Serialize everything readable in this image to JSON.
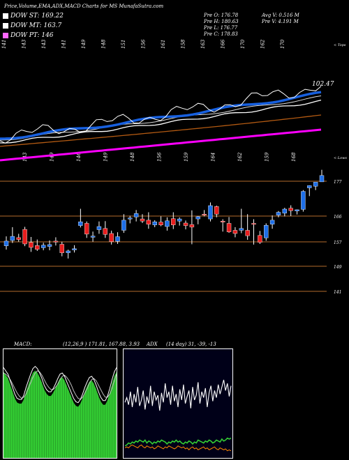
{
  "header": {
    "title": "Price,Volume,EMA,ADX,MACD Charts for MS MunafaSutra.com",
    "legend": [
      {
        "label": "DOW ST: 169.22",
        "color": "#ffffff"
      },
      {
        "label": "DOW MT: 163.7",
        "color": "#ffffff"
      },
      {
        "label": "DOW PT: 146",
        "color": "#ff66ff"
      }
    ],
    "stats_left": [
      "Pre   O: 176.78",
      "Pre   H: 180.63",
      "Pre   L: 176.77",
      "Pre   C: 178.83"
    ],
    "stats_right": [
      "Avg V: 0.516  M",
      "Pre   V: 4.191 M"
    ]
  },
  "labels": {
    "upper_right": "< Tops",
    "lower_right": "< Lows",
    "macd_title": "MACD:",
    "macd_values": "(12,26,9 ) 171.81, 167.88, 3.93",
    "adx_title": "ADX",
    "adx_values": "(14  day) 31, -39, -13",
    "ema_value": "102.47"
  },
  "colors": {
    "up": "#1e6fe8",
    "down": "#e81e1e",
    "ema_blue": "#1760e0",
    "ema_magenta": "#ff00ff",
    "ema_orange": "#b35a12",
    "macd_fill": "#33cc33",
    "adx_green": "#33cc33",
    "adx_orange": "#ff8800",
    "level": "#b36b2b"
  },
  "chart_data": [
    {
      "type": "line",
      "name": "ema_panel",
      "top_labels": [
        "141",
        "143",
        "143",
        "141",
        "149",
        "148",
        "151",
        "156",
        "161",
        "158",
        "163",
        "166",
        "170",
        "162",
        "170"
      ],
      "bottom_labels": [
        "143",
        "149",
        "146",
        "149",
        "148",
        "156",
        "159",
        "164",
        "162",
        "159",
        "168"
      ],
      "annotation": "102.47"
    },
    {
      "type": "candlestick",
      "name": "price_panel",
      "ylabels": [
        "177",
        "166",
        "157",
        "149",
        "141"
      ],
      "levels": [
        177,
        166,
        157,
        149,
        141
      ],
      "candles": [
        {
          "o": 156.6,
          "h": 159.6,
          "l": 155.4,
          "c": 158.1
        },
        {
          "o": 158.3,
          "h": 162.5,
          "l": 157.5,
          "c": 159.6
        },
        {
          "o": 159.2,
          "h": 160.4,
          "l": 157.9,
          "c": 158.6
        },
        {
          "o": 161.8,
          "h": 162.6,
          "l": 156.5,
          "c": 157.2
        },
        {
          "o": 157.7,
          "h": 159.4,
          "l": 154.7,
          "c": 156.1
        },
        {
          "o": 156.7,
          "h": 158.6,
          "l": 155.0,
          "c": 155.5
        },
        {
          "o": 156.0,
          "h": 157.6,
          "l": 155.2,
          "c": 156.8
        },
        {
          "o": 156.4,
          "h": 158.3,
          "l": 155.2,
          "c": 157.0
        },
        {
          "o": 158.1,
          "h": 159.3,
          "l": 156.7,
          "c": 158.0
        },
        {
          "o": 157.1,
          "h": 157.9,
          "l": 153.3,
          "c": 154.4
        },
        {
          "o": 154.4,
          "h": 155.4,
          "l": 152.6,
          "c": 155.0
        },
        {
          "o": 155.3,
          "h": 156.8,
          "l": 154.5,
          "c": 155.7
        },
        {
          "o": 163.0,
          "h": 168.3,
          "l": 162.4,
          "c": 164.2
        },
        {
          "o": 163.7,
          "h": 164.3,
          "l": 159.1,
          "c": 160.3
        },
        {
          "o": 159.3,
          "h": 161.1,
          "l": 157.9,
          "c": 159.7
        },
        {
          "o": 161.7,
          "h": 164.3,
          "l": 160.4,
          "c": 162.7
        },
        {
          "o": 162.1,
          "h": 164.4,
          "l": 159.1,
          "c": 160.2
        },
        {
          "o": 160.5,
          "h": 161.4,
          "l": 157.0,
          "c": 157.9
        },
        {
          "o": 158.0,
          "h": 160.9,
          "l": 157.2,
          "c": 159.5
        },
        {
          "o": 161.5,
          "h": 166.6,
          "l": 160.7,
          "c": 164.7
        },
        {
          "o": 165.1,
          "h": 166.1,
          "l": 163.7,
          "c": 165.4
        },
        {
          "o": 165.7,
          "h": 167.9,
          "l": 164.3,
          "c": 166.8
        },
        {
          "o": 165.1,
          "h": 166.6,
          "l": 163.8,
          "c": 164.4
        },
        {
          "o": 164.7,
          "h": 167.2,
          "l": 162.0,
          "c": 163.4
        },
        {
          "o": 163.2,
          "h": 164.7,
          "l": 162.5,
          "c": 164.2
        },
        {
          "o": 164.1,
          "h": 165.9,
          "l": 162.8,
          "c": 163.2
        },
        {
          "o": 162.7,
          "h": 165.6,
          "l": 161.4,
          "c": 164.5
        },
        {
          "o": 165.2,
          "h": 167.2,
          "l": 161.9,
          "c": 163.2
        },
        {
          "o": 164.4,
          "h": 165.6,
          "l": 163.0,
          "c": 165.1
        },
        {
          "o": 163.8,
          "h": 164.6,
          "l": 161.8,
          "c": 163.0
        },
        {
          "o": 163.3,
          "h": 167.8,
          "l": 157.1,
          "c": 162.5
        },
        {
          "o": 165.1,
          "h": 166.0,
          "l": 163.4,
          "c": 165.8
        },
        {
          "o": 166.6,
          "h": 167.9,
          "l": 165.9,
          "c": 166.4
        },
        {
          "o": 165.1,
          "h": 170.3,
          "l": 164.3,
          "c": 169.3
        },
        {
          "o": 169.0,
          "h": 169.3,
          "l": 165.6,
          "c": 166.6
        },
        {
          "o": 164.4,
          "h": 165.0,
          "l": 161.1,
          "c": 164.3
        },
        {
          "o": 163.7,
          "h": 165.7,
          "l": 160.7,
          "c": 161.0
        },
        {
          "o": 161.5,
          "h": 162.5,
          "l": 159.3,
          "c": 160.5
        },
        {
          "o": 161.5,
          "h": 168.3,
          "l": 160.6,
          "c": 162.1
        },
        {
          "o": 161.5,
          "h": 166.6,
          "l": 158.5,
          "c": 159.8
        },
        {
          "o": 163.7,
          "h": 165.0,
          "l": 157.0,
          "c": 163.5
        },
        {
          "o": 159.9,
          "h": 161.3,
          "l": 157.2,
          "c": 157.7
        },
        {
          "o": 159.1,
          "h": 163.7,
          "l": 158.2,
          "c": 163.1
        },
        {
          "o": 163.4,
          "h": 166.2,
          "l": 162.0,
          "c": 164.7
        },
        {
          "o": 166.3,
          "h": 167.6,
          "l": 165.6,
          "c": 167.2
        },
        {
          "o": 166.9,
          "h": 168.6,
          "l": 165.9,
          "c": 168.2
        },
        {
          "o": 168.5,
          "h": 169.4,
          "l": 166.0,
          "c": 167.7
        },
        {
          "o": 167.6,
          "h": 168.1,
          "l": 166.5,
          "c": 168.0
        },
        {
          "o": 168.1,
          "h": 174.2,
          "l": 167.4,
          "c": 173.8
        },
        {
          "o": 174.9,
          "h": 175.7,
          "l": 172.3,
          "c": 175.6
        },
        {
          "o": 175.4,
          "h": 176.6,
          "l": 174.2,
          "c": 176.7
        },
        {
          "o": 176.8,
          "h": 180.6,
          "l": 176.8,
          "c": 178.8
        }
      ]
    },
    {
      "type": "area",
      "name": "macd_panel",
      "series": [
        {
          "name": "MACD",
          "values": [
            171.8,
            171.5,
            171.2,
            170.6,
            170.0,
            169.4,
            169.0,
            168.9,
            168.9,
            169.3,
            170.0,
            170.6,
            171.2,
            171.7,
            171.9,
            171.7,
            171.3,
            170.8,
            170.2,
            169.8,
            169.6,
            169.6,
            169.9,
            170.3,
            170.8,
            171.2,
            171.3,
            171.0,
            170.5,
            170.0,
            169.5,
            169.0,
            168.7,
            168.6,
            168.9,
            169.4,
            170.0,
            170.5,
            170.9,
            171.0,
            170.7,
            170.2,
            169.6,
            169.1,
            168.8,
            168.8,
            169.2,
            169.9,
            170.7,
            171.4,
            171.8
          ]
        },
        {
          "name": "Signal",
          "values": [
            171.3,
            171.2,
            171.0,
            170.7,
            170.3,
            169.9,
            169.5,
            169.2,
            169.0,
            169.1,
            169.4,
            169.9,
            170.4,
            170.9,
            171.3,
            171.5,
            171.4,
            171.1,
            170.7,
            170.3,
            170.0,
            169.8,
            169.8,
            170.0,
            170.3,
            170.7,
            171.0,
            171.1,
            170.9,
            170.6,
            170.2,
            169.7,
            169.3,
            169.0,
            168.9,
            169.1,
            169.5,
            169.9,
            170.4,
            170.7,
            170.8,
            170.6,
            170.2,
            169.8,
            169.4,
            169.1,
            169.1,
            169.4,
            169.9,
            170.6,
            171.2
          ]
        },
        {
          "name": "Histogram",
          "values": [
            4.1,
            4.1,
            4.0,
            4.0,
            4.0,
            3.9,
            3.9,
            3.8,
            3.8,
            3.8,
            3.8,
            3.9,
            3.9,
            3.9,
            4.0,
            4.0,
            4.1,
            4.1,
            4.1,
            4.1,
            4.0,
            4.0,
            3.9,
            3.9,
            3.9,
            3.9,
            4.0,
            4.0,
            4.1,
            4.1,
            4.1,
            4.0,
            4.0,
            3.9,
            3.8,
            3.8,
            3.8,
            3.9,
            4.0,
            4.0,
            4.1,
            4.1,
            4.1,
            4.0,
            3.9,
            3.8,
            3.8,
            3.8,
            3.9,
            3.9,
            3.9
          ]
        }
      ]
    },
    {
      "type": "line",
      "name": "adx_panel",
      "series": [
        {
          "name": "ADX",
          "values": [
            31,
            35,
            29,
            40,
            27,
            38,
            31,
            44,
            28,
            33,
            41,
            25,
            36,
            30,
            45,
            28,
            40,
            33,
            37,
            24,
            39,
            31,
            47,
            35,
            40,
            29,
            45,
            32,
            38,
            27,
            42,
            33,
            46,
            30,
            36,
            41,
            26,
            44,
            33,
            37,
            48,
            30,
            40,
            35,
            43,
            27,
            39,
            45,
            32,
            41,
            35,
            46,
            38,
            44,
            50,
            41,
            47,
            36,
            45
          ]
        },
        {
          "name": "+DI",
          "values": [
            8,
            9,
            11,
            10,
            12,
            11,
            13,
            12,
            14,
            13,
            12,
            14,
            11,
            13,
            12,
            10,
            12,
            11,
            13,
            12,
            14,
            13,
            12,
            10,
            12,
            11,
            13,
            12,
            14,
            12,
            13,
            11,
            10,
            12,
            11,
            13,
            12,
            10,
            12,
            11,
            14,
            13,
            12,
            11,
            13,
            12,
            14,
            13,
            11,
            12,
            14,
            13,
            12,
            15,
            13,
            14,
            16,
            15,
            16
          ]
        },
        {
          "name": "-DI",
          "values": [
            6,
            7,
            6,
            8,
            9,
            8,
            7,
            6,
            8,
            9,
            7,
            6,
            8,
            7,
            6,
            7,
            5,
            6,
            8,
            7,
            6,
            5,
            7,
            6,
            8,
            7,
            6,
            5,
            6,
            8,
            7,
            6,
            7,
            5,
            6,
            4,
            6,
            7,
            5,
            6,
            4,
            5,
            6,
            7,
            5,
            6,
            4,
            5,
            6,
            7,
            5,
            4,
            6,
            5,
            4,
            5,
            3,
            4,
            3
          ]
        }
      ]
    }
  ]
}
